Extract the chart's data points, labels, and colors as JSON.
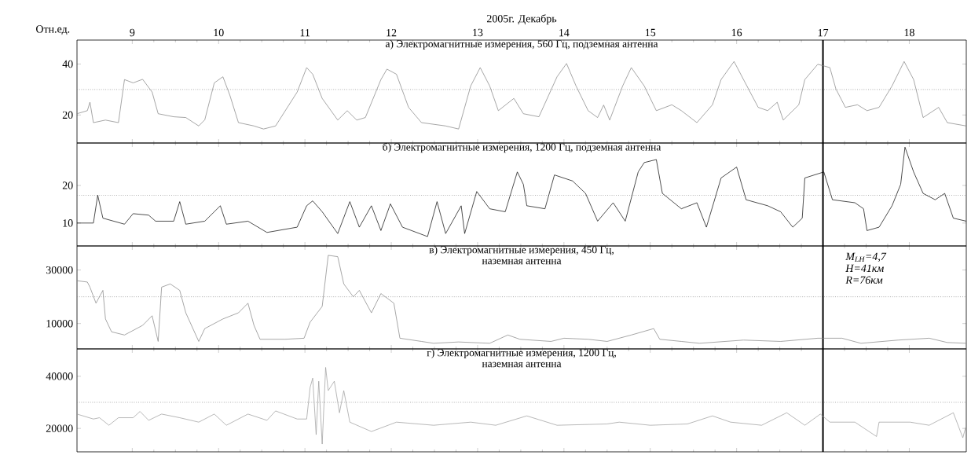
{
  "chart_data": [
    {
      "type": "line",
      "title": "а) Электромагнитные измерения, 560 Гц, подземная антенна",
      "xlabel": "2005г. Декабрь",
      "ylabel": "Отн.ед.",
      "color": "#7f7f7f",
      "x": [
        8.36,
        8.48,
        8.51,
        8.55,
        8.69,
        8.84,
        8.91,
        9.01,
        9.12,
        9.23,
        9.3,
        9.48,
        9.62,
        9.77,
        9.84,
        9.95,
        10.05,
        10.13,
        10.23,
        10.41,
        10.52,
        10.66,
        10.91,
        11.02,
        11.09,
        11.2,
        11.38,
        11.49,
        11.6,
        11.7,
        11.88,
        11.95,
        12.06,
        12.2,
        12.35,
        12.63,
        12.78,
        12.92,
        13.03,
        13.14,
        13.24,
        13.42,
        13.53,
        13.71,
        13.92,
        14.03,
        14.14,
        14.28,
        14.39,
        14.46,
        14.53,
        14.68,
        14.78,
        14.93,
        15.07,
        15.25,
        15.36,
        15.54,
        15.72,
        15.82,
        15.97,
        16.08,
        16.25,
        16.36,
        16.47,
        16.54,
        16.72,
        16.79,
        16.94,
        17.08,
        17.15,
        17.26,
        17.4,
        17.51,
        17.65,
        17.8,
        17.94,
        18.05,
        18.16,
        18.34,
        18.44,
        18.66
      ],
      "values": [
        20.5,
        21.7,
        25,
        17,
        18,
        17,
        33.9,
        32.6,
        34,
        29,
        20.5,
        19.3,
        19,
        15.7,
        18.1,
        32.6,
        35,
        27.8,
        17,
        15.7,
        14.5,
        15.7,
        29,
        38.6,
        36,
        26.5,
        18,
        21.7,
        18,
        19,
        33.9,
        38,
        36,
        23,
        17,
        15.7,
        14.5,
        31.4,
        38.6,
        31.4,
        21.7,
        26.5,
        20.5,
        19.3,
        35,
        40.2,
        31.4,
        21.7,
        19,
        23.9,
        18,
        31.4,
        38.6,
        31.4,
        21.7,
        24,
        21.7,
        17,
        24,
        33.9,
        41,
        33.9,
        23,
        21.7,
        25,
        18,
        24,
        33.9,
        39.9,
        38.6,
        30.2,
        23,
        24,
        21.7,
        23,
        31.4,
        41,
        33.9,
        19,
        23,
        17,
        15.7
      ],
      "xlim": [
        8.36,
        18.66
      ],
      "ylim": [
        9,
        49.4
      ],
      "xticks": [
        9,
        10,
        11,
        12,
        13,
        14,
        15,
        16,
        17,
        18
      ],
      "yticks": [
        20,
        40
      ],
      "ref_lines": [
        {
          "axis": "y",
          "value": 30,
          "color": "#808080",
          "line_style": "dotted"
        },
        {
          "axis": "x",
          "value": 17,
          "color": "#000000",
          "line_style": "solid"
        }
      ]
    },
    {
      "type": "line",
      "title": "б) Электромагнитные измерения, 1200 Гц, подземная антенна",
      "color": "#000000",
      "tick_labels": "y",
      "x": [
        8.36,
        8.55,
        8.6,
        8.66,
        8.91,
        9.01,
        9.19,
        9.27,
        9.48,
        9.55,
        9.62,
        9.84,
        10.02,
        10.09,
        10.34,
        10.56,
        10.91,
        11.02,
        11.09,
        11.2,
        11.38,
        11.52,
        11.63,
        11.77,
        11.88,
        11.99,
        12.13,
        12.42,
        12.53,
        12.63,
        12.81,
        12.85,
        12.99,
        13.14,
        13.32,
        13.46,
        13.53,
        13.57,
        13.78,
        13.89,
        14.1,
        14.25,
        14.39,
        14.57,
        14.71,
        14.86,
        14.93,
        15.07,
        15.14,
        15.36,
        15.54,
        15.65,
        15.82,
        16.0,
        16.11,
        16.36,
        16.51,
        16.65,
        16.76,
        16.79,
        17.01,
        17.11,
        17.37,
        17.47,
        17.51,
        17.65,
        17.8,
        17.9,
        17.95,
        18.05,
        18.16,
        18.3,
        18.41,
        18.51,
        18.66
      ],
      "values": [
        10,
        10,
        17.4,
        11.3,
        9.7,
        12.5,
        12.1,
        10.5,
        10.5,
        15.7,
        9.7,
        10.5,
        14.6,
        9.7,
        10.5,
        7.5,
        8.9,
        14.6,
        15.9,
        13,
        7.2,
        15.7,
        8.9,
        14.6,
        8,
        15.1,
        8.9,
        6.4,
        15.7,
        7.2,
        14.6,
        7.2,
        18.4,
        13.8,
        13,
        23.6,
        20.3,
        14.6,
        13.8,
        22.8,
        21.2,
        17.9,
        10.5,
        15.4,
        10.5,
        23.6,
        26.1,
        26.9,
        17.9,
        13.8,
        15.4,
        8.9,
        22,
        24.9,
        16.2,
        14.6,
        13,
        8.9,
        11.3,
        22,
        23.6,
        16.2,
        15.4,
        13.8,
        8,
        8.9,
        14.6,
        20.3,
        30.2,
        23.6,
        17.9,
        16.2,
        17.9,
        11.3,
        10.5
      ],
      "xlim": [
        8.36,
        18.66
      ],
      "ylim": [
        3.9,
        31.3
      ],
      "xticks": [
        9,
        10,
        11,
        12,
        13,
        14,
        15,
        16,
        17,
        18
      ],
      "yticks": [
        10,
        20
      ],
      "ref_lines": [
        {
          "axis": "y",
          "value": 17.4,
          "color": "#808080",
          "line_style": "dotted"
        },
        {
          "axis": "x",
          "value": 17,
          "color": "#000000",
          "line_style": "solid"
        }
      ]
    },
    {
      "type": "line",
      "title": "в) Электромагнитные измерения, 450 Гц,",
      "subtitle": "наземная антенна",
      "color": "#808080",
      "tick_labels": "y",
      "annotations": [
        "M$_{LH}$=4,7",
        "H=41км",
        "R=76км"
      ],
      "x": [
        8.36,
        8.48,
        8.51,
        8.58,
        8.66,
        8.69,
        8.76,
        8.91,
        9.12,
        9.23,
        9.3,
        9.34,
        9.44,
        9.55,
        9.62,
        9.77,
        9.84,
        10.05,
        10.23,
        10.34,
        10.41,
        10.48,
        10.77,
        10.99,
        11.06,
        11.2,
        11.27,
        11.38,
        11.45,
        11.56,
        11.63,
        11.77,
        11.88,
        12.03,
        12.1,
        12.35,
        12.49,
        12.78,
        13.14,
        13.35,
        13.49,
        13.85,
        14.0,
        14.28,
        14.5,
        14.78,
        15.04,
        15.11,
        15.36,
        15.57,
        16.08,
        16.51,
        16.94,
        17.22,
        17.44,
        17.87,
        18.23,
        18.44,
        18.66
      ],
      "values": [
        26000,
        25500,
        23600,
        17600,
        22400,
        11700,
        6900,
        5700,
        9300,
        12900,
        3300,
        23600,
        24800,
        22400,
        14000,
        3300,
        8100,
        11700,
        14000,
        17600,
        9300,
        4100,
        4100,
        4500,
        10500,
        16400,
        35500,
        35000,
        24800,
        20000,
        22400,
        14000,
        21200,
        17600,
        4500,
        3300,
        2600,
        3100,
        2600,
        5700,
        4100,
        3300,
        4500,
        4100,
        3300,
        5700,
        8100,
        4100,
        3300,
        2600,
        3800,
        3300,
        4500,
        4500,
        2600,
        3800,
        4500,
        2900,
        2600
      ],
      "xlim": [
        8.36,
        18.66
      ],
      "ylim": [
        500,
        39000
      ],
      "xticks": [
        9,
        10,
        11,
        12,
        13,
        14,
        15,
        16,
        17,
        18
      ],
      "yticks": [
        10000,
        30000
      ],
      "ref_lines": [
        {
          "axis": "y",
          "value": 20000,
          "color": "#808080",
          "line_style": "dotted"
        },
        {
          "axis": "x",
          "value": 17,
          "color": "#000000",
          "line_style": "solid"
        }
      ]
    },
    {
      "type": "line",
      "title": "г) Электромагнитные измерения, 1200 Гц,",
      "subtitle": "наземная антенна",
      "color": "#999999",
      "tick_labels": "y",
      "x": [
        8.36,
        8.55,
        8.62,
        8.73,
        8.84,
        9.01,
        9.09,
        9.19,
        9.34,
        9.55,
        9.77,
        9.95,
        10.09,
        10.34,
        10.56,
        10.66,
        10.91,
        11.02,
        11.06,
        11.09,
        11.13,
        11.16,
        11.2,
        11.24,
        11.27,
        11.34,
        11.4,
        11.45,
        11.52,
        11.77,
        12.06,
        12.49,
        12.92,
        13.21,
        13.57,
        13.92,
        14.5,
        14.64,
        15.0,
        15.43,
        15.72,
        15.93,
        16.29,
        16.58,
        16.79,
        16.97,
        17.08,
        17.37,
        17.62,
        17.65,
        18.01,
        18.23,
        18.51,
        18.62,
        18.66
      ],
      "values": [
        25500,
        23600,
        24100,
        21200,
        24100,
        24100,
        26500,
        23100,
        25500,
        24100,
        22400,
        25500,
        21200,
        25500,
        23100,
        26700,
        23600,
        23600,
        35700,
        39300,
        17600,
        38100,
        14000,
        43400,
        34500,
        38100,
        26000,
        34500,
        22400,
        18800,
        22400,
        21200,
        22400,
        21200,
        24800,
        21200,
        21700,
        22400,
        21200,
        21700,
        24800,
        22400,
        21200,
        26000,
        21200,
        25500,
        22400,
        22400,
        16900,
        22400,
        22400,
        21200,
        26000,
        16400,
        21200
      ],
      "xlim": [
        8.36,
        18.66
      ],
      "ylim": [
        11000,
        50500
      ],
      "xticks": [
        9,
        10,
        11,
        12,
        13,
        14,
        15,
        16,
        17,
        18
      ],
      "yticks": [
        20000,
        40000
      ],
      "ref_lines": [
        {
          "axis": "y",
          "value": 30000,
          "color": "#808080",
          "line_style": "dotted"
        },
        {
          "axis": "x",
          "value": 17,
          "color": "#000000",
          "line_style": "solid"
        }
      ]
    }
  ]
}
